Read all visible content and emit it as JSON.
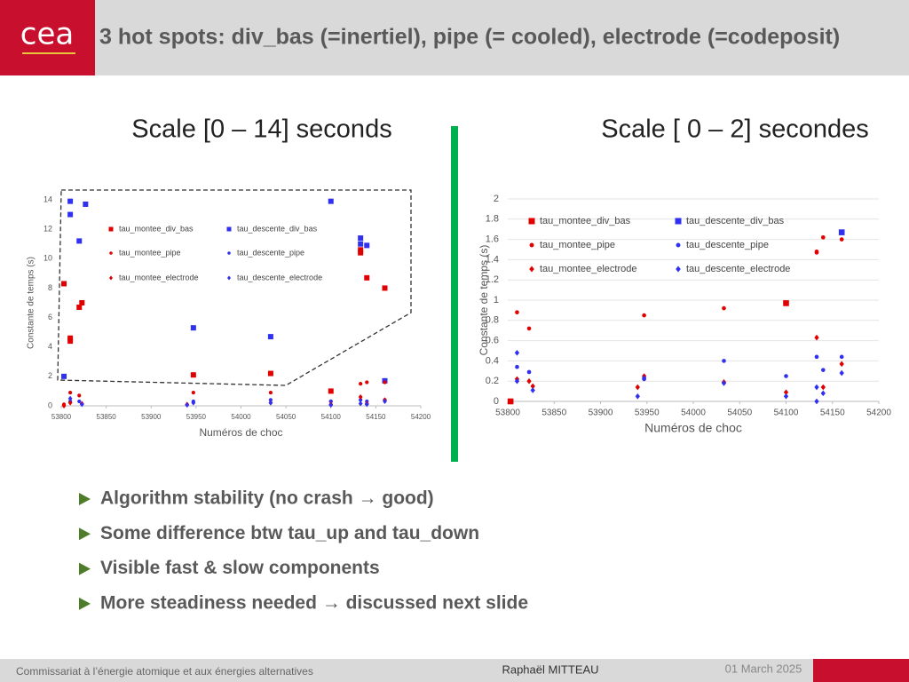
{
  "header": {
    "logo": "cea",
    "title": "3 hot spots:  div_bas (=inertiel), pipe (= cooled), electrode (=codeposit)"
  },
  "subtitles": [
    "Scale [0 – 14] seconds",
    "Scale [ 0 – 2] secondes"
  ],
  "chart_data": [
    {
      "type": "scatter",
      "xlabel": "Numéros de choc",
      "ylabel": "Constante de temps (s)",
      "xlim": [
        53800,
        54200
      ],
      "xticks": [
        53800,
        53850,
        53900,
        53950,
        54000,
        54050,
        54100,
        54150,
        54200
      ],
      "ylim": [
        0,
        14
      ],
      "yticks": [
        0,
        2,
        4,
        6,
        8,
        10,
        12,
        14
      ],
      "grid": false,
      "legend": "upper left",
      "series": [
        {
          "name": "tau_montee_div_bas",
          "color": "#e00000",
          "marker": "square",
          "x": [
            53803,
            53810,
            53810,
            53820,
            53823,
            53947,
            54033,
            54100,
            54133,
            54133,
            54140,
            54160
          ],
          "values": [
            8.3,
            4.6,
            4.4,
            6.7,
            7.0,
            2.1,
            2.2,
            1.0,
            10.6,
            10.4,
            8.7,
            8.0
          ]
        },
        {
          "name": "tau_descente_div_bas",
          "color": "#3030f0",
          "marker": "square",
          "x": [
            53803,
            53810,
            53810,
            53820,
            53827,
            53947,
            54033,
            54100,
            54133,
            54133,
            54140,
            54160
          ],
          "values": [
            2.0,
            13.9,
            13.0,
            11.2,
            13.7,
            5.3,
            4.7,
            13.9,
            11.4,
            11.0,
            10.9,
            1.7
          ]
        },
        {
          "name": "tau_montee_pipe",
          "color": "#e00000",
          "marker": "circle",
          "x": [
            53803,
            53810,
            53820,
            53947,
            54033,
            54100,
            54133,
            54140,
            54160
          ],
          "values": [
            0.1,
            0.9,
            0.7,
            0.9,
            0.9,
            0.3,
            1.5,
            1.6,
            1.6
          ]
        },
        {
          "name": "tau_descente_pipe",
          "color": "#3030f0",
          "marker": "circle",
          "x": [
            53810,
            53820,
            53947,
            54033,
            54100,
            54133,
            54140,
            54160
          ],
          "values": [
            0.3,
            0.3,
            0.3,
            0.4,
            0.3,
            0.4,
            0.3,
            0.4
          ]
        },
        {
          "name": "tau_montee_electrode",
          "color": "#e00000",
          "marker": "diamond",
          "x": [
            53803,
            53810,
            53823,
            53940,
            54033,
            54100,
            54133,
            54140,
            54160
          ],
          "values": [
            0,
            0.2,
            0.15,
            0.1,
            0.2,
            0.1,
            0.6,
            0.15,
            0.4
          ]
        },
        {
          "name": "tau_descente_electrode",
          "color": "#3030f0",
          "marker": "diamond",
          "x": [
            53810,
            53823,
            53940,
            53947,
            54033,
            54100,
            54133,
            54140,
            54160
          ],
          "values": [
            0.5,
            0.1,
            0.05,
            0.2,
            0.2,
            0.05,
            0.15,
            0.1,
            0.3
          ]
        }
      ]
    },
    {
      "type": "scatter",
      "xlabel": "Numéros de choc",
      "ylabel": "Constante de temps (s)",
      "xlim": [
        53800,
        54200
      ],
      "xticks": [
        53800,
        53850,
        53900,
        53950,
        54000,
        54050,
        54100,
        54150,
        54200
      ],
      "ylim": [
        0,
        2
      ],
      "yticks": [
        0,
        0.2,
        0.4,
        0.6,
        0.8,
        1,
        1.2,
        1.4,
        1.6,
        1.8,
        2
      ],
      "grid": true,
      "legend": "upper left",
      "series": [
        {
          "name": "tau_montee_div_bas",
          "color": "#e00000",
          "marker": "square",
          "x": [
            53803,
            54100
          ],
          "values": [
            0.0,
            0.97
          ]
        },
        {
          "name": "tau_descente_div_bas",
          "color": "#3030f0",
          "marker": "square",
          "x": [
            54160
          ],
          "values": [
            1.67
          ]
        },
        {
          "name": "tau_montee_pipe",
          "color": "#e00000",
          "marker": "circle",
          "x": [
            53810,
            53823,
            53947,
            54033,
            54133,
            54133,
            54140,
            54160
          ],
          "values": [
            0.88,
            0.72,
            0.85,
            0.92,
            1.47,
            1.48,
            1.62,
            1.6
          ]
        },
        {
          "name": "tau_descente_pipe",
          "color": "#3030f0",
          "marker": "circle",
          "x": [
            53810,
            53823,
            53947,
            54033,
            54100,
            54133,
            54140,
            54160
          ],
          "values": [
            0.34,
            0.29,
            0.22,
            0.4,
            0.25,
            0.44,
            0.31,
            0.44
          ]
        },
        {
          "name": "tau_montee_electrode",
          "color": "#e00000",
          "marker": "diamond",
          "x": [
            53810,
            53823,
            53827,
            53940,
            53947,
            54033,
            54100,
            54133,
            54140,
            54160
          ],
          "values": [
            0.22,
            0.2,
            0.15,
            0.14,
            0.25,
            0.19,
            0.09,
            0.63,
            0.14,
            0.37
          ]
        },
        {
          "name": "tau_descente_electrode",
          "color": "#3030f0",
          "marker": "diamond",
          "x": [
            53810,
            53810,
            53827,
            53940,
            53947,
            54033,
            54100,
            54133,
            54133,
            54140,
            54160
          ],
          "values": [
            0.48,
            0.2,
            0.11,
            0.05,
            0.23,
            0.18,
            0.05,
            0.14,
            0.0,
            0.08,
            0.28
          ]
        }
      ]
    }
  ],
  "bullets": [
    "Algorithm stability (no crash → good)",
    "Some difference btw tau_up and tau_down",
    "Visible fast & slow components",
    "More steadiness needed → discussed next slide"
  ],
  "footer": {
    "organization": "Commissariat à l’énergie atomique et aux énergies alternatives",
    "author": "Raphaël MITTEAU",
    "date": "01 March 2025"
  }
}
